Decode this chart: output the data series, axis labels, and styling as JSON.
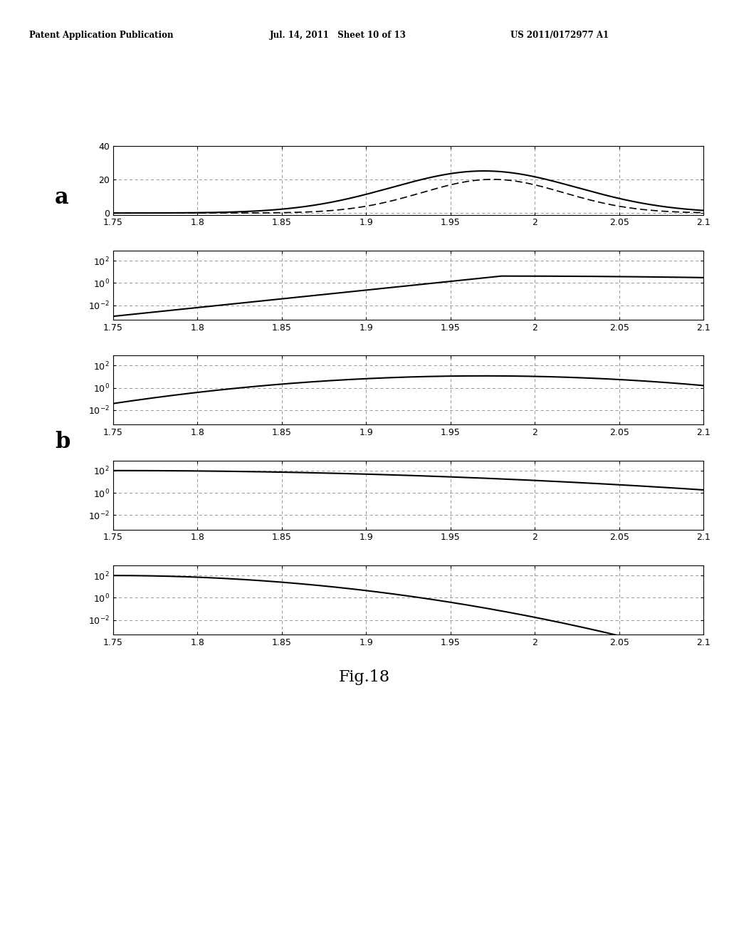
{
  "xmin": 1.75,
  "xmax": 2.1,
  "xticks": [
    1.75,
    1.8,
    1.85,
    1.9,
    1.95,
    2.0,
    2.05,
    2.1
  ],
  "xtick_labels": [
    "1.75",
    "1.8",
    "1.85",
    "1.9",
    "1.95",
    "2",
    "2.05",
    "2.1"
  ],
  "background_color": "#ffffff",
  "header_left": "Patent Application Publication",
  "header_mid": "Jul. 14, 2011   Sheet 10 of 13",
  "header_right": "US 2011/0172977 A1",
  "fig_label": "Fig.18",
  "label_a": "a",
  "label_b": "b"
}
